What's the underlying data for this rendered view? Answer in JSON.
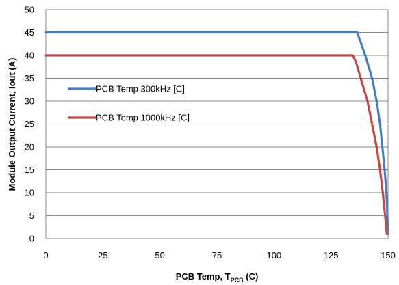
{
  "chart_data": {
    "type": "line",
    "xlabel": "PCB Temp, T",
    "xlabel_sub": "PCB",
    "xlabel_suffix": " (C)",
    "ylabel": "Module Output Current, Iout (A)",
    "xlim": [
      0,
      150
    ],
    "ylim": [
      0,
      50
    ],
    "xticks": [
      0,
      25,
      50,
      75,
      100,
      125,
      150
    ],
    "yticks": [
      0,
      5,
      10,
      15,
      20,
      25,
      30,
      35,
      40,
      45,
      50
    ],
    "grid": "horizontal",
    "legend_position": "center-left",
    "series": [
      {
        "name": "PCB Temp 300kHz [C]",
        "color": "#4a7ebb",
        "points": [
          [
            0,
            45
          ],
          [
            136.5,
            45
          ],
          [
            140,
            40
          ],
          [
            143,
            35
          ],
          [
            145,
            30
          ],
          [
            146.5,
            25
          ],
          [
            147.5,
            20
          ],
          [
            148.5,
            15
          ],
          [
            149.3,
            10
          ],
          [
            149.7,
            5
          ],
          [
            150,
            1
          ]
        ]
      },
      {
        "name": "PCB Temp 1000kHz [C]",
        "color": "#be4b48",
        "points": [
          [
            0,
            40
          ],
          [
            134.5,
            40
          ],
          [
            136,
            38.5
          ],
          [
            138,
            35
          ],
          [
            141,
            30
          ],
          [
            143,
            25
          ],
          [
            145,
            20
          ],
          [
            146.5,
            15
          ],
          [
            147.7,
            10
          ],
          [
            148.7,
            5
          ],
          [
            149.5,
            1
          ]
        ]
      }
    ]
  }
}
